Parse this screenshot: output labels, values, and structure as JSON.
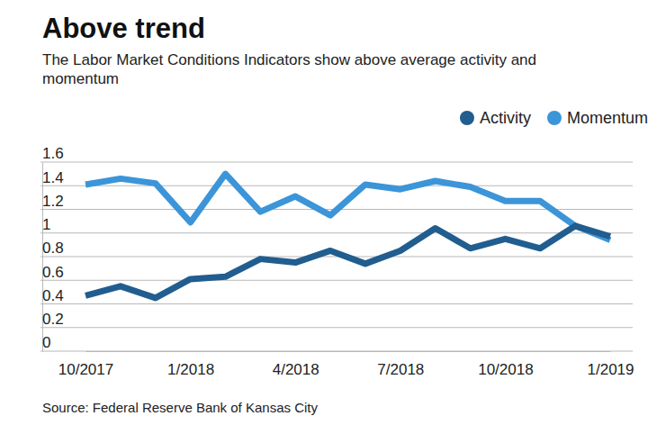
{
  "chart_data": {
    "type": "line",
    "title": "Above trend",
    "subtitle": "The Labor Market Conditions Indicators show above average activity and momentum",
    "source": "Source: Federal Reserve Bank of Kansas City",
    "categories": [
      "10/2017",
      null,
      null,
      "1/2018",
      null,
      null,
      "4/2018",
      null,
      null,
      "7/2018",
      null,
      null,
      "10/2018",
      null,
      null,
      "1/2019"
    ],
    "series": [
      {
        "name": "Activity",
        "color": "#215d8f",
        "values": [
          0.47,
          0.55,
          0.45,
          0.61,
          0.63,
          0.78,
          0.75,
          0.85,
          0.74,
          0.85,
          1.04,
          0.87,
          0.95,
          0.87,
          1.06,
          0.97
        ]
      },
      {
        "name": "Momentum",
        "color": "#3b95d8",
        "values": [
          1.41,
          1.46,
          1.42,
          1.09,
          1.5,
          1.18,
          1.31,
          1.15,
          1.41,
          1.37,
          1.44,
          1.39,
          1.27,
          1.27,
          1.06,
          0.94
        ]
      }
    ],
    "ylim": [
      0,
      1.6
    ],
    "yticks": [
      0,
      0.2,
      0.4,
      0.6,
      0.8,
      1,
      1.2,
      1.4,
      1.6
    ],
    "grid": true,
    "legend": "top-right"
  }
}
